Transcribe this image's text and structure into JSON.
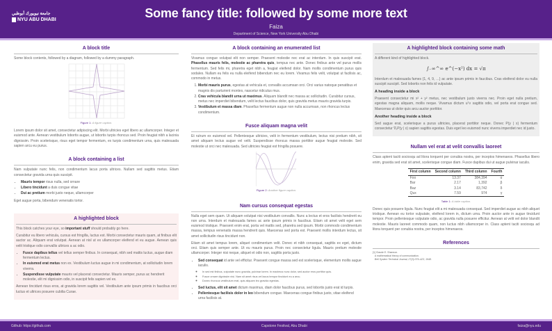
{
  "header": {
    "title": "Some fancy title: followed by some more text",
    "author": "Faiza",
    "institute": "Department of Science, New York University Abu Dhabi",
    "logo_arabic": "جامعة نيويورك أبوظبي",
    "logo_text": "NYU ABU DHABI"
  },
  "colors": {
    "primary": "#57218a",
    "stripe": "#c9a9e6",
    "alert_bg": "#fcf0f0",
    "example_bg": "#eeeeee"
  },
  "left": {
    "block1": {
      "title": "A block title",
      "intro": "Some block contents, followed by a diagram, followed by a dummy paragraph.",
      "fig_label": "Figure 1:",
      "fig_caption": "A figure caption.",
      "para": "Lorem ipsum dolor sit amet, consectetur adipiscing elit. Morbi ultricies eget libero ac ullamcorper. Integer et euismod ante. Aenean vestibulum lobortis augue, ut lobortis turpis rhoncus sed. Proin feugiat nibh a lacinia dignissim. Proin scelerisque, risus eget tempor fermentum, ex turpis condimentum urna, quis malesuada sapien arcu eu purus."
    },
    "block2": {
      "title": "A block containing a list",
      "intro": "Nam vulputate nunc felis, non condimentum lacus porta ultrices. Nullam sed sagittis metus. Etiam consectetur gravida urna quis suscipit.",
      "items": [
        {
          "b": "Mauris tempor",
          "t": " risus nulla, sed ornare"
        },
        {
          "b": "Libero tincidunt",
          "t": " a duis congue vitae"
        },
        {
          "b": "Dui ac pretium",
          "t": " morbi justo neque, ullamcorper"
        }
      ],
      "outro": "Eget augue porta, bibendum venenatis tortor."
    },
    "block3": {
      "title": "A highlighted block",
      "p1a": "This block catches your eye, so ",
      "p1b": "important stuff",
      "p1c": " should probably go here.",
      "p2": "Curabitur eu libero vehicula, cursus est fringilla, luctus est. Morbi consectetur mauris quam, at finibus elit auctor ac. Aliquam erat volutpat. Aenean at nisl ut ex ullamcorper eleifend et eu augue. Aenean quis velit tristique odio convallis ultrices a ac odio.",
      "items": [
        {
          "b": "Fusce dapibus tellus",
          "t": " vel tellus semper finibus. In consequat, nibh sed mattis luctus, augue diam fermentum lectus."
        },
        {
          "b": "In euismod erat metus",
          "t": " non ex. Vestibulum luctus augue in mi condimentum, at sollicitudin lorem viverra."
        },
        {
          "b": "Suspendisse vulputate",
          "t": " mauris vel placerat consectetur. Mauris semper, purus ac hendrerit molestie, elit mi dignissim odio, in suscipit felis sapien vel ex."
        }
      ],
      "p3": "Aenean tincidunt risus eros, at gravida lorem sagittis vel. Vestibulum ante ipsum primis in faucibus orci luctus et ultrices posuere cubilia Curae."
    }
  },
  "middle": {
    "block1": {
      "title": "A block containing an enumerated list",
      "p1a": "Vivamus congue volutpat elit non semper. Praesent molestie nec erat ac interdum. In quis suscipit erat. ",
      "p1b": "Phasellus mauris felis, molestie ac pharetra quis",
      "p1c": ", tempus nec ante. Donec finibus ante vel purus mollis fermentum. Sed felis mi, pharetra eget nibh a, feugiat eleifend dolor. Nam mollis condimentum purus quis sodales. Nullam eu felis eu nulla eleifend bibendum nec eu lorem. Vivamus felis velit, volutpat ut facilisis ac, commodo in metus.",
      "items": [
        {
          "b": "Morbi mauris purus",
          "t": ", egestas at vehicula et, convallis accumsan orci. Orci varius natoque penatibus et magnis dis parturient montes, nascetur ridiculus mus."
        },
        {
          "b": "Cras vehicula blandit urna ut maximus",
          "t": ". Aliquam blandit nec massa ac sollicitudin. Curabitur cursus, metus nec imperdiet bibendum, velit lectus faucibus dolor, quis gravida metus mauris gravida turpis."
        },
        {
          "b": "Vestibulum et massa diam",
          "t": ". Phasellus fermentum augue non nulla accumsan, non rhoncus lectus condimentum."
        }
      ]
    },
    "block2": {
      "title": "Fusce aliquam magna velit",
      "para": "Et rutrum ex euismod vel. Pellentesque ultricies, velit in fermentum vestibulum, lectus nisi pretium nibh, sit amet aliquam lectus augue vel velit. Suspendisse rhoncus massa porttitor augue feugiat molestie. Sed molestie ut orci nec malesuada. Sed ultricies feugiat est fringilla posuere.",
      "fig_label": "Figure 2:",
      "fig_caption": "Another figure caption."
    },
    "block3": {
      "title": "Nam cursus consequat egestas",
      "p1": "Nulla eget sem quam. Ut aliquam volutpat nisi vestibulum convallis. Nunc a lectus et eros facilisis hendrerit eu non urna. Interdum et malesuada fames ac ante ipsum primis in faucibus. Etiam sit amet velit eget sem euismod tristique. Praesent enim erat, porta vel mattis sed, pharetra sed ipsum. Morbi commodo condimentum massa, tempus venenatis massa hendrerit quis. Maecenas sed porta est. Praesent mollis interdum lectus, sit amet sollicitudin risus tincidunt non.",
      "p2": "Etiam sit amet tempus lorem, aliquet condimentum velit. Donec et nibh consequat, sagittis ex eget, dictum orci. Etiam quis semper ante. Ut eu mauris purus. Proin nec consectetur ligula. Mauris pretium molestie ullamcorper. Integer nisi neque, aliquet et odio non, sagittis porta justo.",
      "i1b": "Sed consequat",
      "i1t": " id ante vel efficitur. Praesent congue massa sed est scelerisque, elementum mollis augue iaculis.",
      "sub": [
        "In sed est finibus, vulputate nunc gravida, pulvinar lorem. In maximus nunc dolor, sed auctor eros porttitor quis.",
        "Fusce ornare dignissim nisi. Nam sit amet risus vel lacus tempor tincidunt eu a arcu.",
        "Donec rhoncus vestibulum erat, quis aliquam leo gravida egestas."
      ],
      "i2b": "Sed luctus, elit sit amet",
      "i2t": " dictum maximus, diam dolor faucibus purus, sed lobortis justo erat id turpis.",
      "i3b": "Pellentesque facilisis dolor in leo",
      "i3t": " bibendum congue. Maecenas congue finibus justo, vitae eleifend urna facilisis at."
    }
  },
  "right": {
    "block1": {
      "title": "A highlighted block containing some math",
      "intro": "A different kind of highlighted block.",
      "equation": "∫₋∞^∞ e^(−x²) dx = √π",
      "p1": "Interdum et malesuada fames {1, 4, 9, …} ac ante ipsum primis in faucibus. Cras eleifend dolor eu nulla suscipit suscipit. Sed lobortis non felis id vulputate.",
      "h1": "A heading inside a block",
      "p2": "Praesent consectetur mi x² + y² metus, nec vestibulum justo viverra nec. Proin eget nulla pretium, egestas magna aliquam, mollis neque. Vivamus dictum uᵀv sagittis odio, vel porta erat congue sed. Maecenas ut dolor quis arcu auctor porttitor.",
      "h2": "Another heading inside a block",
      "p3": "Sed augue erat, scelerisque a purus ultricies, placerat porttitor neque. Donec P(y | x) fermentum consectetur ∇ₓP(y | x) sapien sagittis egestas. Duis eget leo euismod nunc viverra imperdiet nec id justo."
    },
    "block2": {
      "title": "Nullam vel erat at velit convallis laoreet",
      "p1": "Class aptent taciti sociosqu ad litora torquent per conubia nostra, per inceptos himenaeos. Phasellus libero enim, gravida sed erat sit amet, scelerisque congue diam. Fusce dapibus dui ut augue pulvinar iaculis.",
      "table": {
        "headers": [
          "First column",
          "Second column",
          "Third column",
          "Fourth"
        ],
        "rows": [
          [
            "Foo",
            "13.37",
            "384,394",
            "α"
          ],
          [
            "Bar",
            "2.17",
            "1,392",
            "β"
          ],
          [
            "Baz",
            "3.14",
            "83,742",
            "δ"
          ],
          [
            "Qux",
            "7.59",
            "974",
            "γ"
          ]
        ]
      },
      "tab_label": "Table 1:",
      "tab_caption": "A table caption.",
      "p2": "Donec quis posuere ligula. Nunc feugiat elit a mi malesuada consequat. Sed imperdiet augue ac nibh aliquet tristique. Aenean eu tortor vulputate, eleifend lorem in, dictum urna. Proin auctor ante in augue tincidunt tempor. Proin pellentesque vulputate odio, ac gravida nulla posuere efficitur. Aenean at velit vel dolor blandit molestie. Mauris laoreet commodo quam, non luctus nibh ullamcorper in. Class aptent taciti sociosqu ad litora torquent per conubia nostra, per inceptos himenaeos."
    },
    "refs": {
      "title": "References",
      "items": [
        {
          "n": "[1]",
          "author": "Claude E. Shannon.",
          "title": "A mathematical theory of communication.",
          "journal": "Bell System Technical Journal, 27(3):379–423, 1948."
        }
      ]
    }
  },
  "footer": {
    "left": "Github: https://github.com",
    "center": "Capstone Festival, Abu Dhabi",
    "right": "faiza@nyu.edu"
  }
}
